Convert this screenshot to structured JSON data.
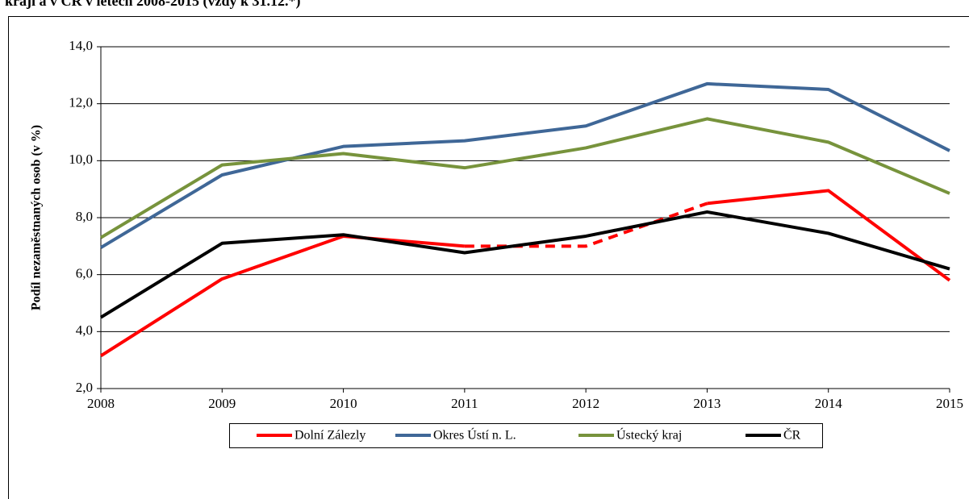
{
  "chart_data": {
    "type": "line",
    "title": "kraji a v ČR v letech 2008-2015 (vždy k 31.12.*)",
    "ylabel": "Podíl nezaměstnaných osob (v %)",
    "x": [
      2008,
      2009,
      2010,
      2011,
      2012,
      2013,
      2014,
      2015
    ],
    "xlim": [
      2008,
      2015
    ],
    "xticks": [
      2008,
      2009,
      2010,
      2011,
      2012,
      2013,
      2014,
      2015
    ],
    "ylim": [
      2,
      14
    ],
    "yticks": [
      {
        "value": 2,
        "label": "2,0"
      },
      {
        "value": 4,
        "label": "4,0"
      },
      {
        "value": 6,
        "label": "6,0"
      },
      {
        "value": 8,
        "label": "8,0"
      },
      {
        "value": 10,
        "label": "10,0"
      },
      {
        "value": 12,
        "label": "12,0"
      },
      {
        "value": 14,
        "label": "14,0"
      }
    ],
    "grid": true,
    "legend": "bottom",
    "series": [
      {
        "name": "Dolní Zálezly",
        "color": "#ff0000",
        "values": [
          3.15,
          5.85,
          7.35,
          7.0,
          7.0,
          8.5,
          8.95,
          5.8
        ],
        "dashed_between": [
          2011,
          2013
        ]
      },
      {
        "name": "Okres Ústí n. L.",
        "color": "#3f6797",
        "values": [
          6.95,
          9.5,
          10.5,
          10.7,
          11.22,
          12.7,
          12.5,
          10.35
        ]
      },
      {
        "name": "Ústecký kraj",
        "color": "#77933c",
        "values": [
          7.3,
          9.85,
          10.25,
          9.75,
          10.45,
          11.47,
          10.65,
          8.85
        ]
      },
      {
        "name": "ČR",
        "color": "#000000",
        "values": [
          4.5,
          7.1,
          7.4,
          6.77,
          7.35,
          8.2,
          7.45,
          6.2
        ]
      }
    ]
  }
}
